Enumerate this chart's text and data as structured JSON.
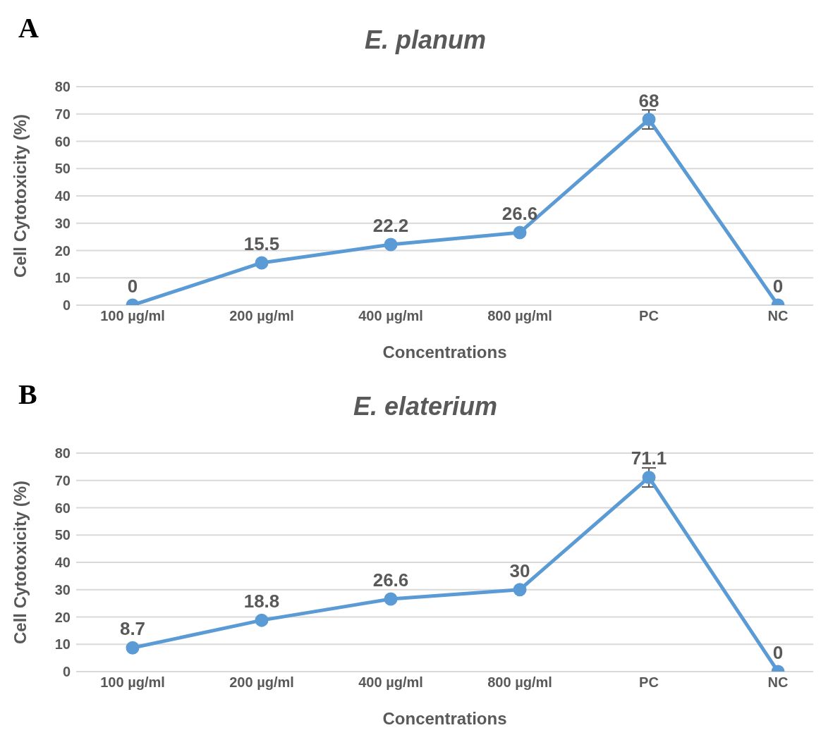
{
  "chart_data": [
    {
      "type": "line",
      "title": "E. planum",
      "xlabel": "Concentrations",
      "ylabel": "Cell Cytotoxicity (%)",
      "annotations": [
        "A"
      ],
      "categories": [
        "100 µg/ml",
        "200 µg/ml",
        "400 µg/ml",
        "800 µg/ml",
        "PC",
        "NC"
      ],
      "series": [
        {
          "color": "#5b9bd5",
          "values": [
            0,
            15.5,
            22.2,
            26.6,
            68,
            0
          ],
          "errors": [
            null,
            null,
            null,
            null,
            3.5,
            null
          ]
        }
      ],
      "ylim": [
        0,
        80
      ],
      "yticks": [
        0,
        10,
        20,
        30,
        40,
        50,
        60,
        70,
        80
      ],
      "grid": "y",
      "marker": "circle",
      "line_style": "solid",
      "data_labels": true
    },
    {
      "type": "line",
      "title": "E. elaterium",
      "xlabel": "Concentrations",
      "ylabel": "Cell Cytotoxicity (%)",
      "annotations": [
        "B"
      ],
      "categories": [
        "100 µg/ml",
        "200 µg/ml",
        "400 µg/ml",
        "800 µg/ml",
        "PC",
        "NC"
      ],
      "series": [
        {
          "color": "#5b9bd5",
          "values": [
            8.7,
            18.8,
            26.6,
            30,
            71.1,
            0
          ],
          "errors": [
            null,
            null,
            null,
            null,
            3.5,
            null
          ]
        }
      ],
      "ylim": [
        0,
        80
      ],
      "yticks": [
        0,
        10,
        20,
        30,
        40,
        50,
        60,
        70,
        80
      ],
      "grid": "y",
      "marker": "circle",
      "line_style": "solid",
      "data_labels": true
    }
  ]
}
